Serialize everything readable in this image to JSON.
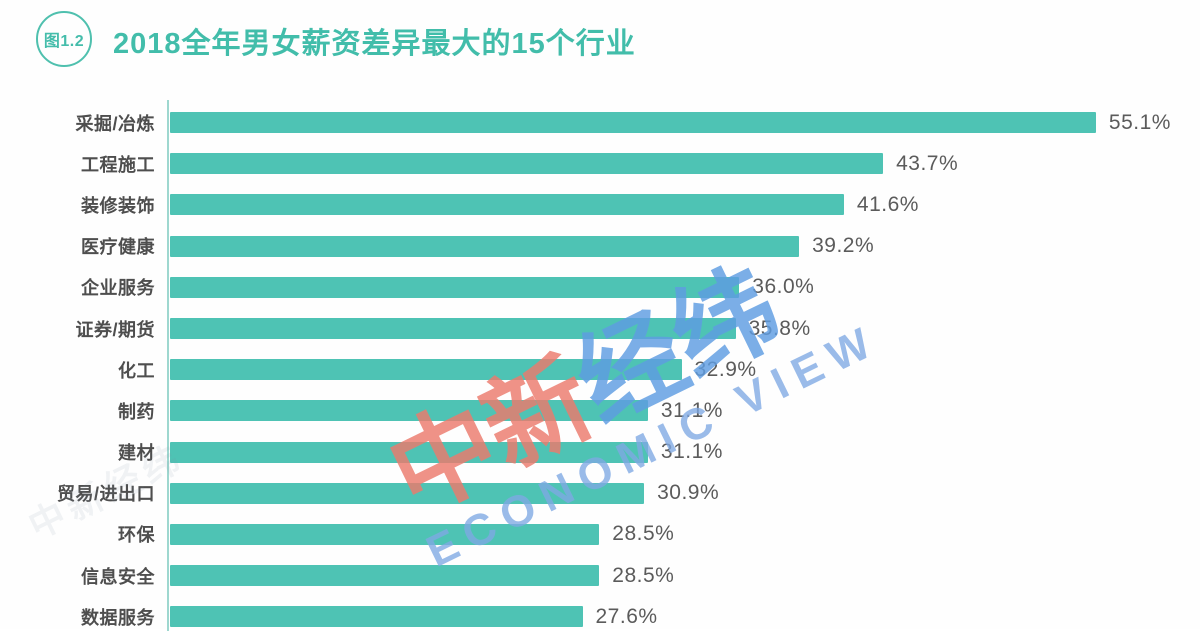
{
  "header": {
    "badge": "图1.2",
    "title": "2018全年男女薪资差异最大的15个行业"
  },
  "watermark": {
    "cn_red": "中新",
    "cn_blue": "经纬",
    "en": "ECONOMIC VIEW",
    "faint_cn": "中新经纬"
  },
  "colors": {
    "bar": "#4ec3b4",
    "title_teal": "#42bdaa",
    "axis_line": "#9ed7cf",
    "category_label": "#4e4e4e",
    "value_label": "#5b5b5b",
    "watermark_red": "#ec7b6d",
    "watermark_blue": "#5f9de2",
    "watermark_en_blue": "#7fa9e4"
  },
  "chart_data": {
    "type": "bar",
    "orientation": "horizontal",
    "title": "2018全年男女薪资差异最大的15个行业",
    "figure_label": "图1.2",
    "categories": [
      "采掘/冶炼",
      "工程施工",
      "装修装饰",
      "医疗健康",
      "企业服务",
      "证券/期货",
      "化工",
      "制药",
      "建材",
      "贸易/进出口",
      "环保",
      "信息安全",
      "数据服务"
    ],
    "values": [
      55.1,
      43.7,
      41.6,
      39.2,
      36.0,
      35.8,
      32.9,
      31.1,
      31.1,
      30.9,
      28.5,
      28.5,
      27.6
    ],
    "value_labels": [
      "55.1%",
      "43.7%",
      "41.6%",
      "39.2%",
      "36.0%",
      "35.8%",
      "32.9%",
      "31.1%",
      "31.1%",
      "30.9%",
      "28.5%",
      "28.5%",
      "27.6%"
    ],
    "unit": "%",
    "xlabel": "",
    "ylabel": "",
    "xlim": [
      5.5,
      58
    ],
    "grid": false,
    "legend": false,
    "visible_rows": 13
  }
}
